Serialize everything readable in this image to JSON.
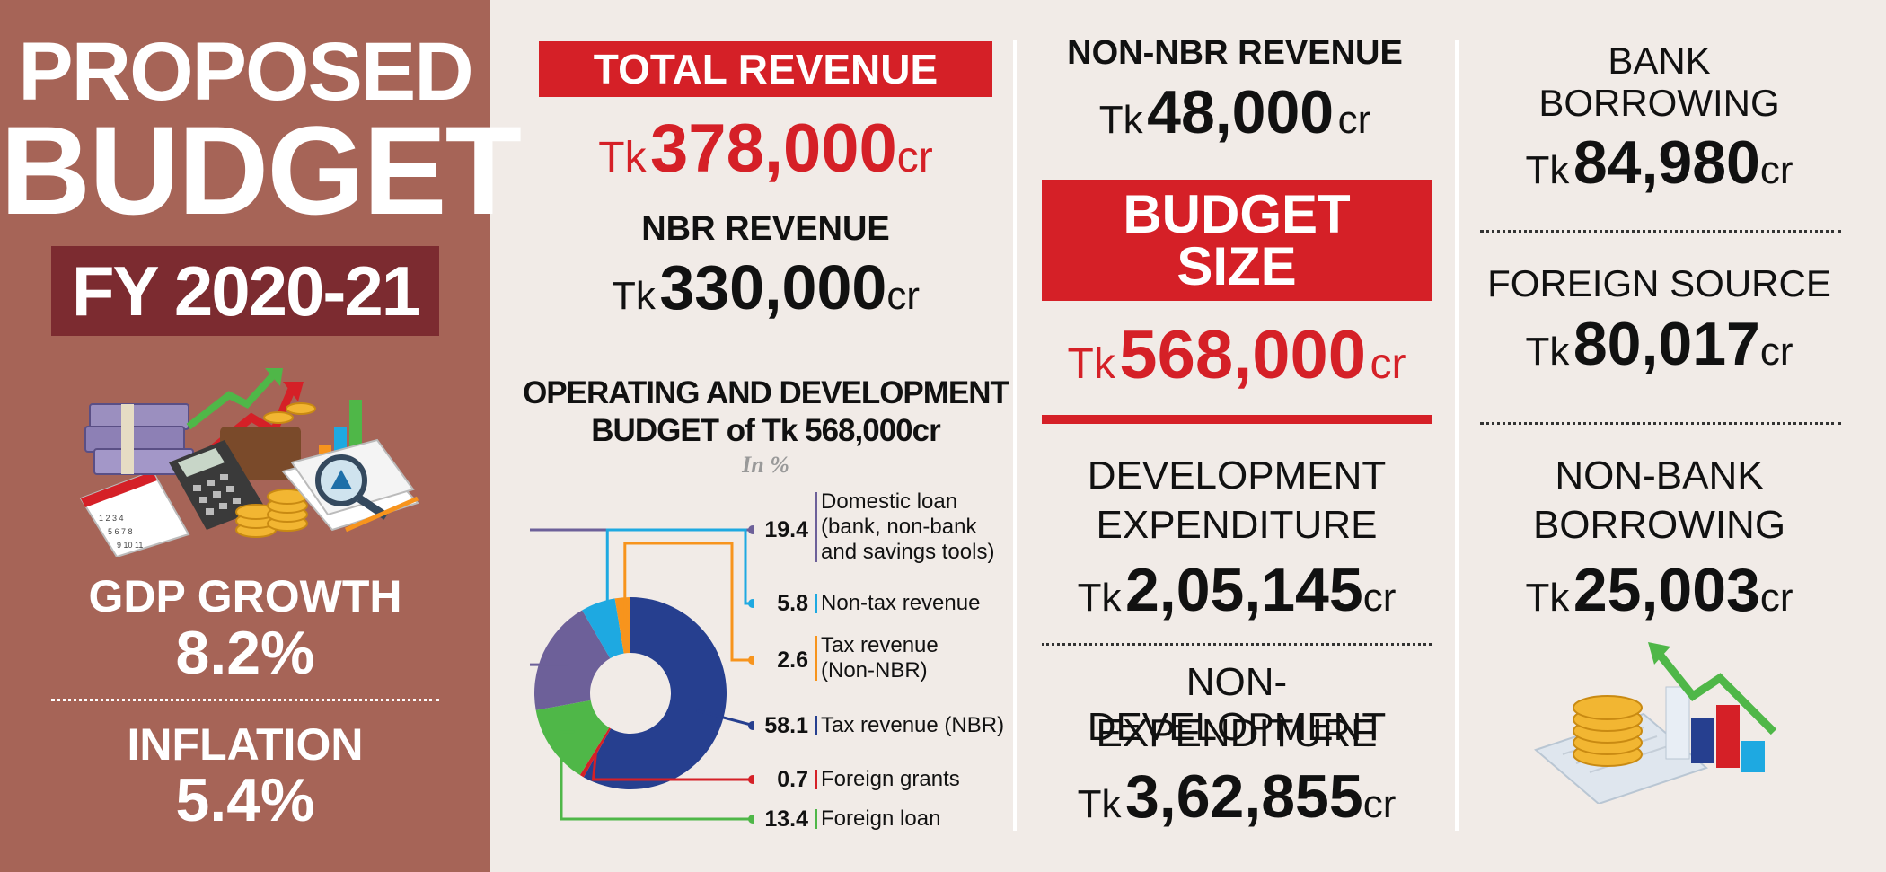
{
  "left": {
    "title_line1": "PROPOSED",
    "title_line2": "BUDGET",
    "fiscal_year": "FY 2020-21",
    "gdp_label": "GDP GROWTH",
    "gdp_value": "8.2%",
    "inflation_label": "INFLATION",
    "inflation_value": "5.4%"
  },
  "revenue": {
    "total_label": "TOTAL REVENUE",
    "total_prefix": "Tk",
    "total_amount": "378,000",
    "total_suffix": "cr",
    "nbr_label": "NBR REVENUE",
    "nbr_prefix": "Tk",
    "nbr_amount": "330,000",
    "nbr_suffix": "cr"
  },
  "budget": {
    "non_nbr_label": "NON-NBR REVENUE",
    "non_nbr_prefix": "Tk",
    "non_nbr_amount": "48,000",
    "non_nbr_suffix": "cr",
    "size_label_1": "BUDGET",
    "size_label_2": "SIZE",
    "size_prefix": "Tk",
    "size_amount": "568,000",
    "size_suffix": "cr",
    "dev_label_1": "DEVELOPMENT",
    "dev_label_2": "EXPENDITURE",
    "dev_prefix": "Tk",
    "dev_amount": "2,05,145",
    "dev_suffix": "cr",
    "nondev_label_1": "NON-DEVELOPMENT",
    "nondev_label_2": "EXPENDITURE",
    "nondev_prefix": "Tk",
    "nondev_amount": "3,62,855",
    "nondev_suffix": "cr"
  },
  "financing": {
    "bank_label_1": "BANK",
    "bank_label_2": "BORROWING",
    "bank_prefix": "Tk",
    "bank_amount": "84,980",
    "bank_suffix": "cr",
    "foreign_label": "FOREIGN SOURCE",
    "foreign_prefix": "Tk",
    "foreign_amount": "80,017",
    "foreign_suffix": "cr",
    "nonbank_label_1": "NON-BANK",
    "nonbank_label_2": "BORROWING",
    "nonbank_prefix": "Tk",
    "nonbank_amount": "25,003",
    "nonbank_suffix": "cr"
  },
  "colors": {
    "left_panel": "#a66457",
    "fy_box": "#7c2b30",
    "accent_red": "#d52027",
    "background": "#f1ebe7"
  },
  "icons": {
    "top_left": "money-calculator-chart-icon",
    "bottom_right": "coins-bar-chart-growth-icon"
  },
  "chart_data": {
    "type": "pie",
    "title_line1": "OPERATING AND DEVELOPMENT",
    "title_line2": "BUDGET of Tk 568,000cr",
    "unit_label": "In %",
    "slices": [
      {
        "label": "Domestic loan (bank, non-bank and savings tools)",
        "label_lines": [
          "Domestic loan",
          "(bank, non-bank",
          "and savings tools)"
        ],
        "value": 19.4,
        "value_text": "19.4",
        "color": "#6d6099"
      },
      {
        "label": "Non-tax revenue",
        "label_lines": [
          "Non-tax revenue"
        ],
        "value": 5.8,
        "value_text": "5.8",
        "color": "#1ea9e1"
      },
      {
        "label": "Tax revenue (Non-NBR)",
        "label_lines": [
          "Tax revenue",
          "(Non-NBR)"
        ],
        "value": 2.6,
        "value_text": "2.6",
        "color": "#f7941d"
      },
      {
        "label": "Tax revenue (NBR)",
        "label_lines": [
          "Tax revenue (NBR)"
        ],
        "value": 58.1,
        "value_text": "58.1",
        "color": "#263f8f"
      },
      {
        "label": "Foreign grants",
        "label_lines": [
          "Foreign grants"
        ],
        "value": 0.7,
        "value_text": "0.7",
        "color": "#d52027"
      },
      {
        "label": "Foreign loan",
        "label_lines": [
          "Foreign loan"
        ],
        "value": 13.4,
        "value_text": "13.4",
        "color": "#4fb748"
      }
    ]
  }
}
